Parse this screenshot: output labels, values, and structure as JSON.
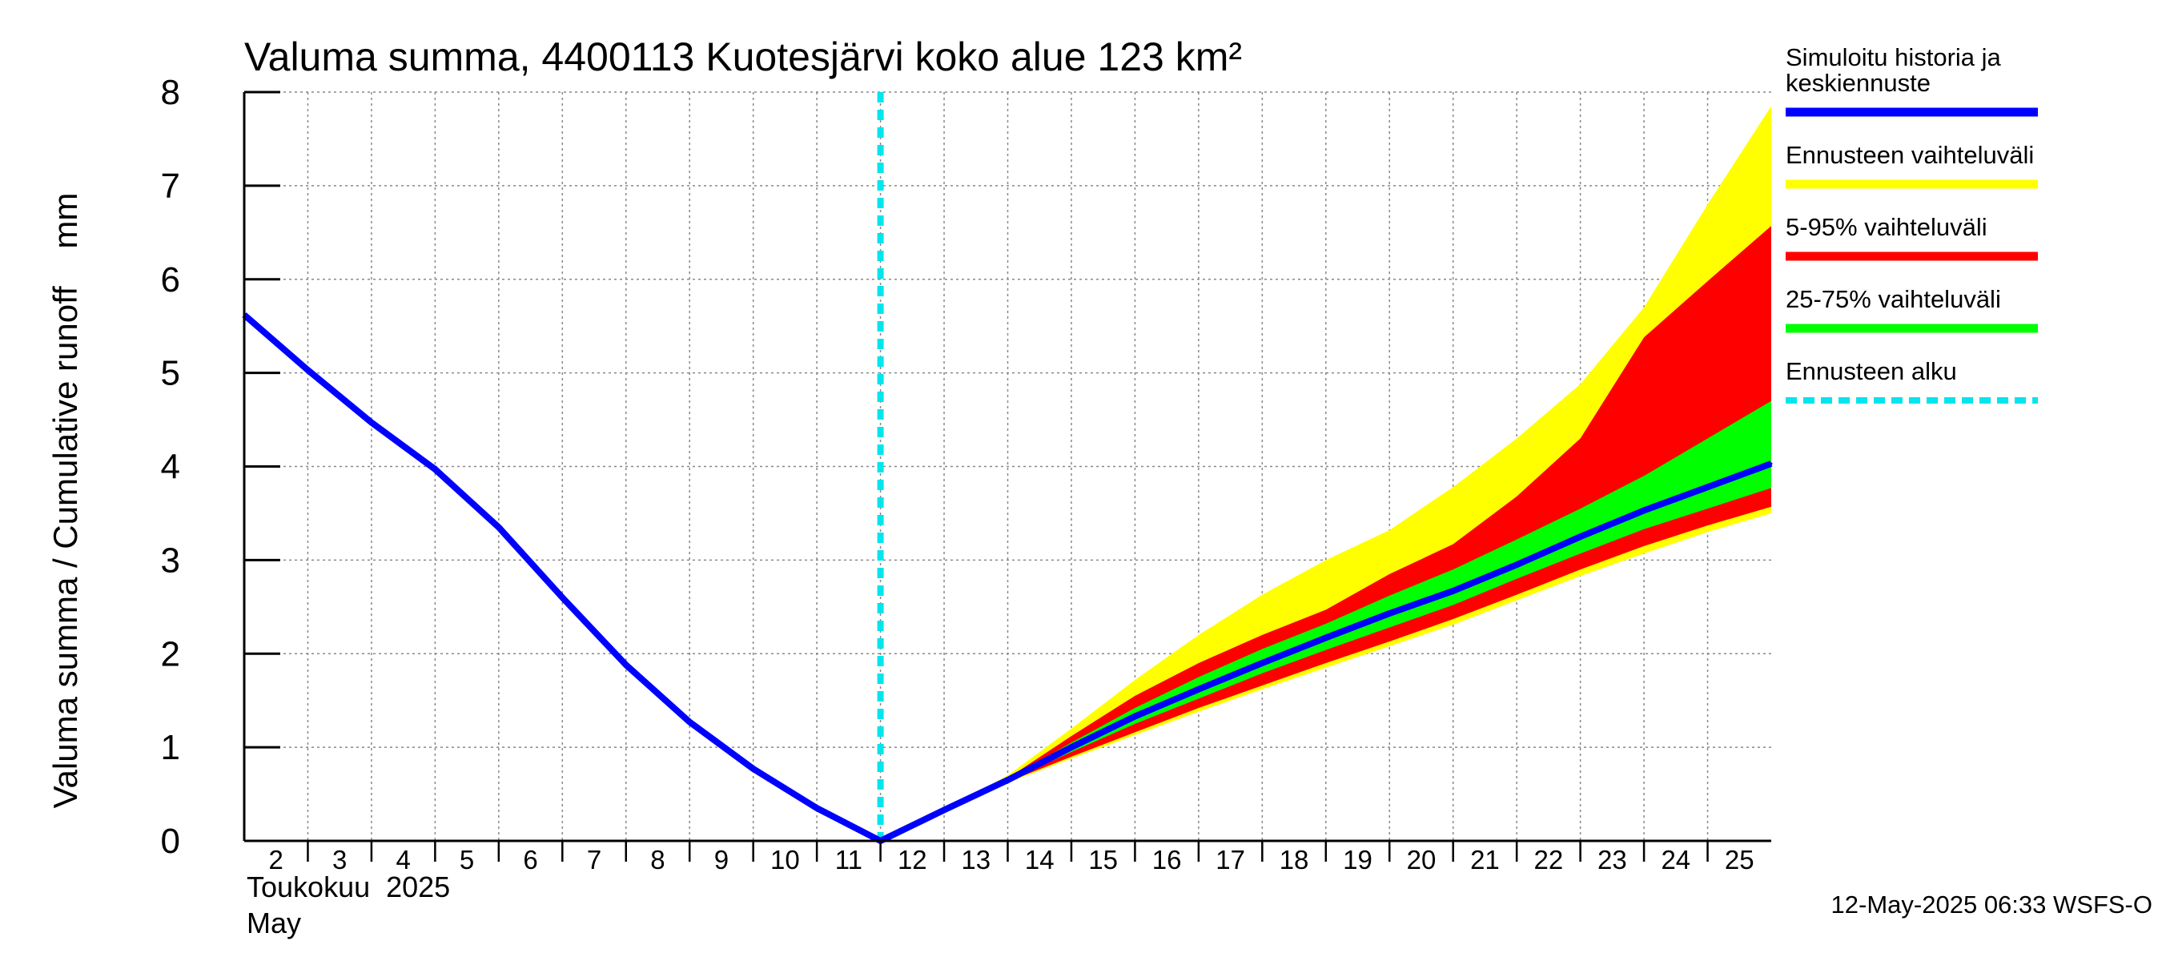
{
  "title": "Valuma summa, 4400113 Kuotesjärvi koko alue 123 km²",
  "ylabel": "Valuma summa / Cumulative runoff    mm",
  "month_label_fi": "Toukokuu  2025",
  "month_label_en": "May",
  "footer": "12-May-2025 06:33 WSFS-O",
  "colors": {
    "history": "#0000ff",
    "range_full": "#ffff00",
    "range_5_95": "#ff0000",
    "range_25_75": "#00ff00",
    "forecast_start": "#00e5ee",
    "grid": "#888888"
  },
  "legend": [
    {
      "label_line1": "Simuloitu historia ja",
      "label_line2": "keskiennuste",
      "color": "#0000ff",
      "style": "solid"
    },
    {
      "label_line1": "Ennusteen vaihteluväli",
      "label_line2": "",
      "color": "#ffff00",
      "style": "solid"
    },
    {
      "label_line1": "5-95% vaihteluväli",
      "label_line2": "",
      "color": "#ff0000",
      "style": "solid"
    },
    {
      "label_line1": "25-75% vaihteluväli",
      "label_line2": "",
      "color": "#00ff00",
      "style": "solid"
    },
    {
      "label_line1": "Ennusteen alku",
      "label_line2": "",
      "color": "#00e5ee",
      "style": "dashed"
    }
  ],
  "chart_data": {
    "type": "area",
    "title": "Valuma summa, 4400113 Kuotesjärvi koko alue 123 km²",
    "ylabel": "Valuma summa / Cumulative runoff    mm",
    "xlabel": "Toukokuu  2025 / May",
    "ylim": [
      0,
      8
    ],
    "xlim": [
      1.5,
      25.5
    ],
    "yticks": [
      0,
      1,
      2,
      3,
      4,
      5,
      6,
      7,
      8
    ],
    "xticks": [
      "2",
      "3",
      "4",
      "5",
      "6",
      "7",
      "8",
      "9",
      "10",
      "11",
      "12",
      "13",
      "14",
      "15",
      "16",
      "17",
      "18",
      "19",
      "20",
      "21",
      "22",
      "23",
      "24",
      "25"
    ],
    "grid": true,
    "legend_position": "right",
    "forecast_start_day": 11.5,
    "series": [
      {
        "name": "Simuloitu historia ja keskiennuste",
        "x": [
          1.5,
          2.5,
          3.5,
          4.5,
          5.5,
          6.5,
          7.5,
          8.5,
          9.5,
          10.5,
          11.5,
          12.5,
          13.5,
          14.5,
          15.5,
          16.5,
          17.5,
          18.5,
          19.5,
          20.5,
          21.5,
          22.5,
          23.5,
          24.5,
          25.5
        ],
        "y": [
          5.62,
          5.03,
          4.47,
          3.97,
          3.35,
          2.6,
          1.88,
          1.27,
          0.77,
          0.35,
          0.0,
          0.33,
          0.65,
          1.0,
          1.33,
          1.62,
          1.9,
          2.17,
          2.43,
          2.67,
          2.95,
          3.25,
          3.53,
          3.78,
          4.03
        ]
      },
      {
        "name": "Ennusteen vaihteluväli",
        "x": [
          11.5,
          12.5,
          13.5,
          14.5,
          15.5,
          16.5,
          17.5,
          18.5,
          19.5,
          20.5,
          21.5,
          22.5,
          23.5,
          24.5,
          25.5
        ],
        "lower": [
          0.0,
          0.33,
          0.62,
          0.88,
          1.13,
          1.38,
          1.62,
          1.85,
          2.08,
          2.31,
          2.57,
          2.83,
          3.07,
          3.3,
          3.5
        ],
        "upper": [
          0.0,
          0.33,
          0.7,
          1.2,
          1.72,
          2.2,
          2.63,
          3.0,
          3.32,
          3.78,
          4.3,
          4.88,
          5.7,
          6.8,
          7.85
        ]
      },
      {
        "name": "5-95% vaihteluväli",
        "x": [
          11.5,
          12.5,
          13.5,
          14.5,
          15.5,
          16.5,
          17.5,
          18.5,
          19.5,
          20.5,
          21.5,
          22.5,
          23.5,
          24.5,
          25.5
        ],
        "lower": [
          0.0,
          0.33,
          0.63,
          0.9,
          1.16,
          1.42,
          1.66,
          1.9,
          2.13,
          2.37,
          2.63,
          2.9,
          3.15,
          3.37,
          3.57
        ],
        "upper": [
          0.0,
          0.33,
          0.67,
          1.12,
          1.55,
          1.9,
          2.2,
          2.47,
          2.85,
          3.17,
          3.68,
          4.3,
          5.38,
          5.98,
          6.57
        ]
      },
      {
        "name": "25-75% vaihteluväli",
        "x": [
          11.5,
          12.5,
          13.5,
          14.5,
          15.5,
          16.5,
          17.5,
          18.5,
          19.5,
          20.5,
          21.5,
          22.5,
          23.5,
          24.5,
          25.5
        ],
        "lower": [
          0.0,
          0.33,
          0.64,
          0.95,
          1.25,
          1.52,
          1.79,
          2.04,
          2.28,
          2.52,
          2.8,
          3.07,
          3.33,
          3.55,
          3.77
        ],
        "upper": [
          0.0,
          0.33,
          0.66,
          1.05,
          1.42,
          1.75,
          2.05,
          2.32,
          2.62,
          2.9,
          3.22,
          3.55,
          3.9,
          4.3,
          4.7
        ]
      }
    ]
  }
}
